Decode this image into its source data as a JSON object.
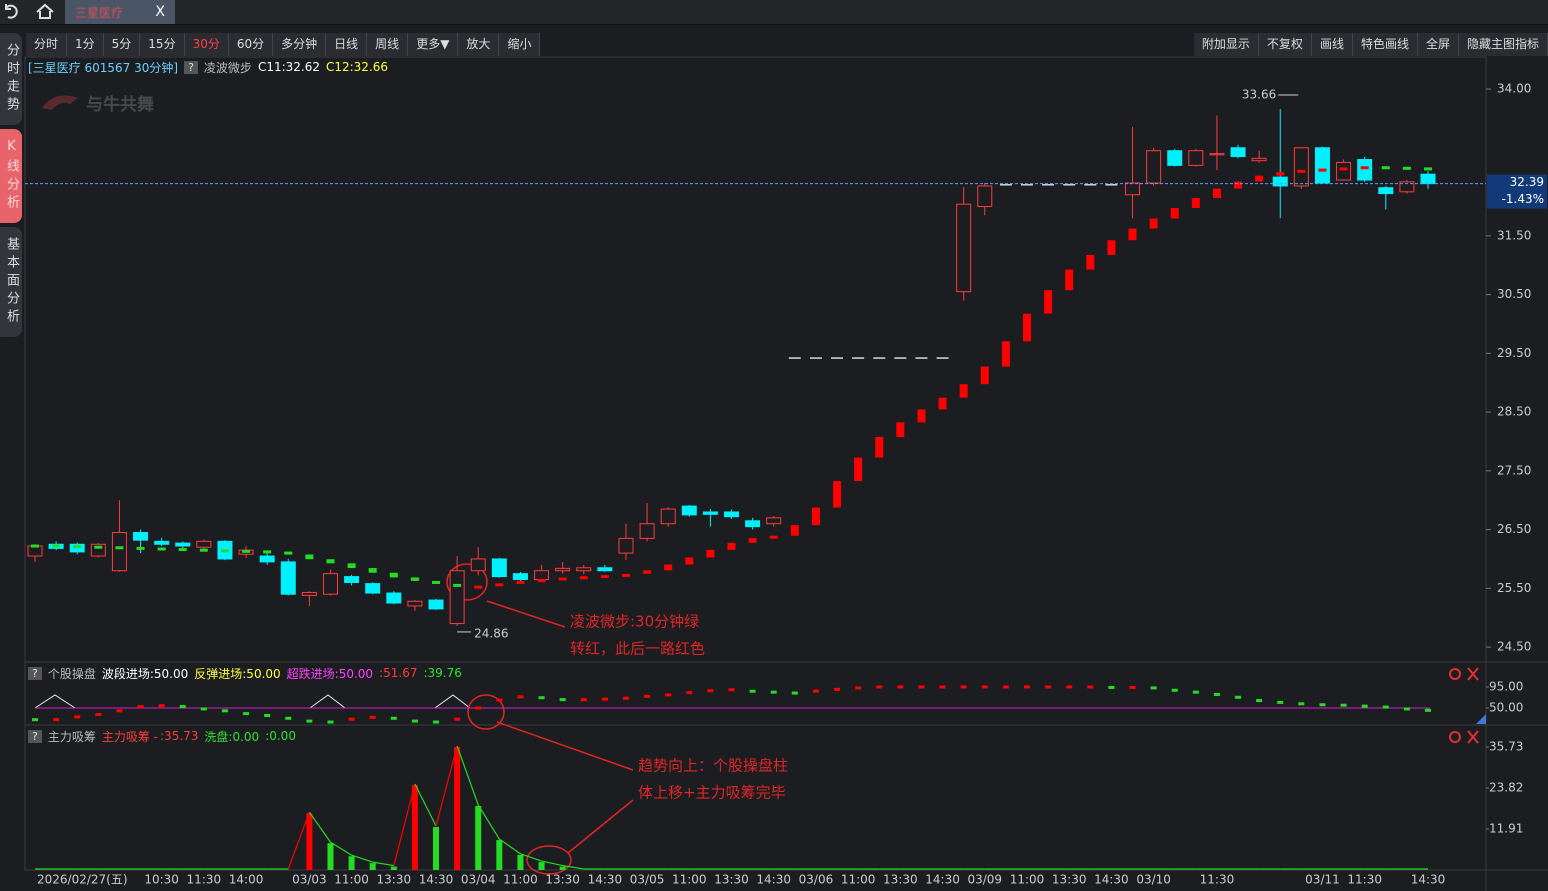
{
  "tab": {
    "title": "三星医疗",
    "close": "X"
  },
  "toolbar": {
    "periods": [
      "分时",
      "1分",
      "5分",
      "15分",
      "30分",
      "60分",
      "多分钟",
      "日线",
      "周线",
      "更多▼",
      "放大",
      "缩小"
    ],
    "active_index": 4,
    "right": [
      "附加显示",
      "不复权",
      "画线",
      "特色画线",
      "全屏",
      "隐藏主图指标"
    ]
  },
  "side_tabs": {
    "items": [
      "分时走势",
      "K线分析",
      "基本面分析"
    ],
    "active_index": 1
  },
  "main": {
    "header": "[三星医疗 601567 30分钟]",
    "help": "?",
    "indicator": "凌波微步",
    "c1": "C11:32.62",
    "c2": "C12:32.66",
    "watermark": "与牛共舞",
    "ylim": [
      24.28,
      34.46
    ],
    "yticks": [
      {
        "value": 34,
        "label": "34.00"
      },
      {
        "value": 31.5,
        "label": "31.50"
      },
      {
        "value": 30.5,
        "label": "30.50"
      },
      {
        "value": 29.5,
        "label": "29.50"
      },
      {
        "value": 28.5,
        "label": "28.50"
      },
      {
        "value": 27.5,
        "label": "27.50"
      },
      {
        "value": 26.5,
        "label": "26.50"
      },
      {
        "value": 25.5,
        "label": "25.50"
      },
      {
        "value": 24.5,
        "label": "24.50"
      }
    ],
    "last_price": {
      "value": 32.39,
      "label": "32.39"
    },
    "change": "-1.43%",
    "high_mark": {
      "value": 33.66,
      "label": "33.66"
    },
    "low_mark": {
      "value": 24.86,
      "label": "24.86"
    },
    "up_color": "#ff3b3b",
    "down_color": "#00f0ff",
    "flat_color": "#d8d8d8",
    "line_up_color": "#ff0000",
    "line_down_color": "#22dd22",
    "candles": [
      [
        26.05,
        26.25,
        25.95,
        26.22
      ],
      [
        26.25,
        26.3,
        26.15,
        26.18
      ],
      [
        26.25,
        26.28,
        26.08,
        26.12
      ],
      [
        26.05,
        26.27,
        26.03,
        26.25
      ],
      [
        25.8,
        27.0,
        25.78,
        26.45
      ],
      [
        26.45,
        26.5,
        26.1,
        26.32
      ],
      [
        26.3,
        26.36,
        26.22,
        26.25
      ],
      [
        26.27,
        26.3,
        26.18,
        26.22
      ],
      [
        26.2,
        26.33,
        26.15,
        26.3
      ],
      [
        26.3,
        26.32,
        25.98,
        26.0
      ],
      [
        26.08,
        26.22,
        26.02,
        26.15
      ],
      [
        26.05,
        26.1,
        25.9,
        25.95
      ],
      [
        25.95,
        26.0,
        25.38,
        25.4
      ],
      [
        25.38,
        25.45,
        25.2,
        25.43
      ],
      [
        25.4,
        25.82,
        25.38,
        25.75
      ],
      [
        25.7,
        25.73,
        25.55,
        25.6
      ],
      [
        25.58,
        25.6,
        25.4,
        25.42
      ],
      [
        25.42,
        25.45,
        25.23,
        25.25
      ],
      [
        25.2,
        25.3,
        25.12,
        25.28
      ],
      [
        25.3,
        25.32,
        25.13,
        25.15
      ],
      [
        24.9,
        26.05,
        24.86,
        25.8
      ],
      [
        25.8,
        26.2,
        25.72,
        26.0
      ],
      [
        26.0,
        26.02,
        25.68,
        25.7
      ],
      [
        25.75,
        25.78,
        25.62,
        25.65
      ],
      [
        25.65,
        25.9,
        25.62,
        25.8
      ],
      [
        25.8,
        25.95,
        25.75,
        25.84
      ],
      [
        25.8,
        25.9,
        25.74,
        25.85
      ],
      [
        25.85,
        25.9,
        25.78,
        25.8
      ],
      [
        26.1,
        26.6,
        25.98,
        26.35
      ],
      [
        26.35,
        26.95,
        26.3,
        26.6
      ],
      [
        26.6,
        26.88,
        26.55,
        26.85
      ],
      [
        26.9,
        26.92,
        26.72,
        26.75
      ],
      [
        26.8,
        26.85,
        26.55,
        26.76
      ],
      [
        26.8,
        26.84,
        26.68,
        26.72
      ],
      [
        26.65,
        26.7,
        26.5,
        26.55
      ],
      [
        26.6,
        26.73,
        26.55,
        26.7
      ],
      [
        29.42,
        29.42,
        29.42,
        29.42
      ],
      [
        29.42,
        29.42,
        29.42,
        29.42
      ],
      [
        29.42,
        29.42,
        29.42,
        29.42
      ],
      [
        29.42,
        29.42,
        29.42,
        29.42
      ],
      [
        29.42,
        29.42,
        29.42,
        29.42
      ],
      [
        29.42,
        29.42,
        29.42,
        29.42
      ],
      [
        29.42,
        29.42,
        29.42,
        29.42
      ],
      [
        29.42,
        29.42,
        29.42,
        29.42
      ],
      [
        30.55,
        32.33,
        30.4,
        32.04
      ],
      [
        32.0,
        32.4,
        31.85,
        32.35
      ],
      [
        32.37,
        32.37,
        32.37,
        32.37
      ],
      [
        32.37,
        32.37,
        32.37,
        32.37
      ],
      [
        32.37,
        32.37,
        32.37,
        32.37
      ],
      [
        32.37,
        32.37,
        32.37,
        32.37
      ],
      [
        32.37,
        32.37,
        32.37,
        32.37
      ],
      [
        32.37,
        32.37,
        32.37,
        32.37
      ],
      [
        32.2,
        33.35,
        31.8,
        32.4
      ],
      [
        32.4,
        33.0,
        32.35,
        32.95
      ],
      [
        32.95,
        32.98,
        32.68,
        32.7
      ],
      [
        32.7,
        32.98,
        32.68,
        32.95
      ],
      [
        32.88,
        33.55,
        32.62,
        32.9
      ],
      [
        33.0,
        33.05,
        32.82,
        32.85
      ],
      [
        32.78,
        32.95,
        32.75,
        32.82
      ],
      [
        32.5,
        33.66,
        31.8,
        32.35
      ],
      [
        32.35,
        33.0,
        32.3,
        33.0
      ],
      [
        33.0,
        33.02,
        32.4,
        32.4
      ],
      [
        32.45,
        32.8,
        32.44,
        32.75
      ],
      [
        32.8,
        32.85,
        32.42,
        32.45
      ],
      [
        32.32,
        32.35,
        31.95,
        32.22
      ],
      [
        32.25,
        32.45,
        32.22,
        32.42
      ],
      [
        32.55,
        32.6,
        32.3,
        32.39
      ]
    ],
    "line": [
      26.22,
      26.21,
      26.2,
      26.19,
      26.18,
      26.17,
      26.16,
      26.15,
      26.14,
      26.13,
      26.12,
      26.1,
      26.05,
      25.97,
      25.9,
      25.82,
      25.74,
      25.66,
      25.6,
      25.55,
      25.5,
      25.52,
      25.56,
      25.6,
      25.63,
      25.66,
      25.68,
      25.7,
      25.72,
      25.78,
      25.88,
      26.0,
      26.13,
      26.25,
      26.33,
      26.37,
      26.55,
      26.85,
      27.3,
      27.7,
      28.05,
      28.3,
      28.52,
      28.72,
      28.95,
      29.25,
      29.68,
      30.15,
      30.55,
      30.9,
      31.15,
      31.4,
      31.6,
      31.77,
      31.95,
      32.12,
      32.28,
      32.4,
      32.5,
      32.56,
      32.6,
      32.62,
      32.64,
      32.66,
      32.65,
      32.64,
      32.62
    ]
  },
  "panel2": {
    "help": "?",
    "name": "个股操盘",
    "l1": "波段进场:50.00",
    "l2": "反弹进场:50.00",
    "l3": "超跌进场:50.00",
    "l4": ":51.67",
    "l5": ":39.76",
    "ylim": [
      13.6,
      142.1
    ],
    "yticks": [
      {
        "value": 95,
        "label": "95.00"
      },
      {
        "value": 50,
        "label": "50.00"
      }
    ],
    "level": 50,
    "values": [
      25,
      25,
      31,
      36,
      44,
      53,
      55,
      53,
      48,
      44,
      38,
      34,
      28,
      22,
      20,
      26,
      30,
      28,
      22,
      20,
      26,
      50,
      67,
      74,
      72,
      68,
      68,
      69,
      71,
      75,
      78,
      83,
      87,
      89,
      86,
      84,
      82,
      86,
      90,
      93,
      95,
      95,
      95,
      95,
      95,
      95,
      95,
      95,
      95,
      95,
      95,
      94,
      94,
      93,
      88,
      84,
      79,
      73,
      66,
      62,
      59,
      57,
      56,
      54,
      52,
      48,
      45
    ]
  },
  "panel3": {
    "help": "?",
    "name": "主力吸筹",
    "l1": "主力吸筹 -",
    "l2": ":35.73",
    "l3": "洗盘:0.00",
    "l4": ":0.00",
    "ylim": [
      0,
      37.76
    ],
    "yticks": [
      35.73,
      23.82,
      11.91
    ],
    "values": [
      0,
      0,
      0,
      0,
      0,
      0,
      0,
      0,
      0,
      0,
      0,
      0,
      0,
      16.5,
      7.8,
      4,
      2,
      1,
      24.7,
      12.5,
      35.73,
      18.6,
      8.7,
      4.4,
      2.3,
      1,
      0,
      0,
      0,
      0,
      0,
      0,
      0,
      0,
      0,
      0,
      0,
      0,
      0,
      0,
      0,
      0,
      0,
      0,
      0,
      0,
      0,
      0,
      0,
      0,
      0,
      0,
      0,
      0,
      0,
      0,
      0,
      0,
      0,
      0,
      0,
      0,
      0,
      0,
      0,
      0,
      0
    ]
  },
  "x_labels": [
    "2026/02/27(五)",
    null,
    null,
    null,
    null,
    null,
    "10:30",
    null,
    "11:30",
    null,
    "14:00",
    null,
    null,
    "03/03",
    null,
    "11:00",
    null,
    "13:30",
    null,
    "14:30",
    null,
    "03/04",
    null,
    "11:00",
    null,
    "13:30",
    null,
    "14:30",
    null,
    "03/05",
    null,
    "11:00",
    null,
    "13:30",
    null,
    "14:30",
    null,
    "03/06",
    null,
    "11:00",
    null,
    "13:30",
    null,
    "14:30",
    null,
    "03/09",
    null,
    "11:00",
    null,
    "13:30",
    null,
    "14:30",
    null,
    "03/10",
    null,
    null,
    "11:30",
    null,
    null,
    null,
    null,
    "03/11",
    null,
    "11:30",
    null,
    null,
    "14:30"
  ],
  "annotations": [
    "凌波微步:30分钟绿",
    "转红，此后一路红色",
    "趋势向上：个股操盘柱",
    "体上移+主力吸筹完毕"
  ]
}
